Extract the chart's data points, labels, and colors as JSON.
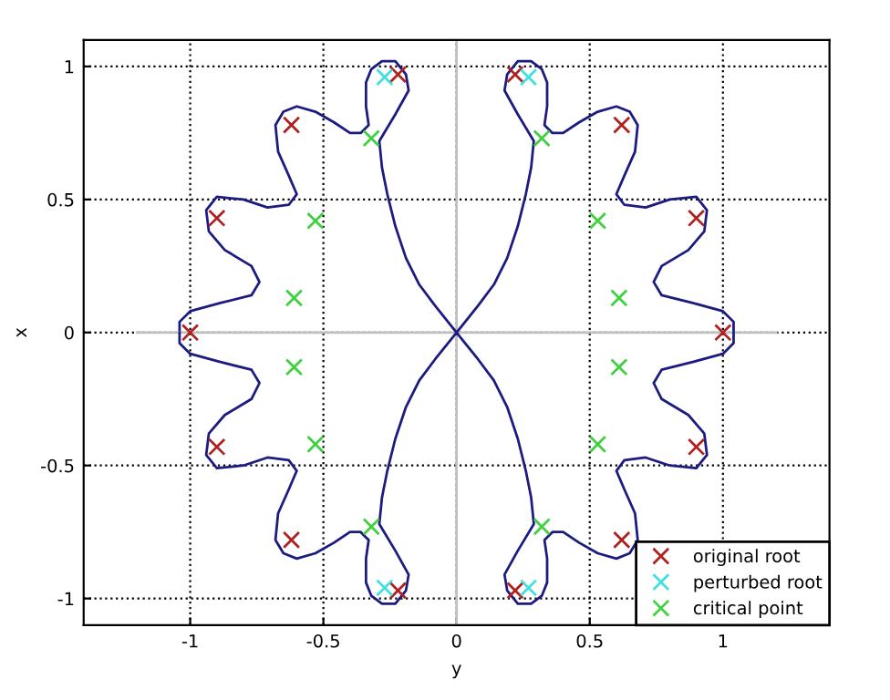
{
  "chart_data": {
    "type": "line",
    "xlabel": "y",
    "ylabel": "x",
    "xlim": [
      -1.4,
      1.4
    ],
    "ylim": [
      -1.1,
      1.1
    ],
    "xticks": [
      -1,
      -0.5,
      0,
      0.5,
      1
    ],
    "yticks": [
      -1,
      -0.5,
      0,
      0.5,
      1
    ],
    "grid": true,
    "legend": "bottom right",
    "series": [
      {
        "color": "#c0c0c0",
        "marker": "none",
        "line_style": "solid",
        "x": [
          -1.2,
          1.2
        ],
        "values": [
          0,
          0
        ]
      },
      {
        "color": "#c0c0c0",
        "marker": "none",
        "line_style": "solid",
        "x": [
          0,
          0
        ],
        "values": [
          -1.1,
          1.1
        ]
      },
      {
        "color": "#1c1c80",
        "marker": "none",
        "line_style": "solid",
        "x": [
          -1.04,
          -1.04,
          -1.0,
          -0.89,
          -0.77,
          -0.74,
          -0.77,
          -0.87,
          -0.93,
          -0.94,
          -0.9,
          -0.8,
          -0.71,
          -0.63,
          -0.6,
          -0.63,
          -0.67,
          -0.68,
          -0.65,
          -0.6,
          -0.53,
          -0.46,
          -0.4,
          -0.36,
          -0.33,
          -0.34,
          -0.34,
          -0.32,
          -0.28,
          -0.23,
          -0.19,
          -0.18,
          -0.23,
          -0.29,
          -0.28,
          -0.26,
          -0.23,
          -0.19,
          -0.14,
          -0.08,
          0,
          0.08,
          0.14,
          0.19,
          0.23,
          0.26,
          0.28,
          0.29,
          0.23,
          0.18,
          0.19,
          0.23,
          0.28,
          0.32,
          0.34,
          0.34,
          0.33,
          0.36,
          0.4,
          0.46,
          0.53,
          0.6,
          0.65,
          0.68,
          0.67,
          0.63,
          0.6,
          0.63,
          0.71,
          0.8,
          0.9,
          0.94,
          0.93,
          0.87,
          0.77,
          0.74,
          0.77,
          0.89,
          1.0,
          1.04,
          1.04,
          1.04,
          1.0,
          0.89,
          0.77,
          0.74,
          0.77,
          0.87,
          0.93,
          0.94,
          0.9,
          0.8,
          0.71,
          0.63,
          0.6,
          0.63,
          0.67,
          0.68,
          0.65,
          0.6,
          0.53,
          0.46,
          0.4,
          0.36,
          0.33,
          0.34,
          0.34,
          0.32,
          0.28,
          0.23,
          0.19,
          0.18,
          0.23,
          0.29,
          0.28,
          0.26,
          0.23,
          0.19,
          0.14,
          0.08,
          0,
          -0.08,
          -0.14,
          -0.19,
          -0.23,
          -0.26,
          -0.28,
          -0.29,
          -0.23,
          -0.18,
          -0.19,
          -0.23,
          -0.28,
          -0.32,
          -0.34,
          -0.34,
          -0.33,
          -0.36,
          -0.4,
          -0.46,
          -0.53,
          -0.6,
          -0.65,
          -0.68,
          -0.67,
          -0.63,
          -0.6,
          -0.63,
          -0.71,
          -0.8,
          -0.9,
          -0.94,
          -0.93,
          -0.87,
          -0.77,
          -0.74,
          -0.77,
          -0.89,
          -1.0,
          -1.04,
          -1.04
        ],
        "values": [
          0,
          -0.04,
          -0.08,
          -0.11,
          -0.14,
          -0.19,
          -0.25,
          -0.31,
          -0.38,
          -0.46,
          -0.51,
          -0.5,
          -0.47,
          -0.48,
          -0.52,
          -0.59,
          -0.68,
          -0.78,
          -0.83,
          -0.85,
          -0.83,
          -0.79,
          -0.75,
          -0.75,
          -0.78,
          -0.85,
          -0.94,
          -0.99,
          -1.02,
          -1.02,
          -0.97,
          -0.91,
          -0.82,
          -0.72,
          -0.62,
          -0.52,
          -0.4,
          -0.28,
          -0.18,
          -0.1,
          0,
          0.1,
          0.18,
          0.28,
          0.4,
          0.52,
          0.62,
          0.72,
          0.82,
          0.91,
          0.97,
          1.02,
          1.02,
          0.99,
          0.94,
          0.85,
          0.78,
          0.75,
          0.75,
          0.79,
          0.83,
          0.85,
          0.83,
          0.78,
          0.68,
          0.59,
          0.52,
          0.48,
          0.47,
          0.5,
          0.51,
          0.46,
          0.38,
          0.31,
          0.25,
          0.19,
          0.14,
          0.11,
          0.08,
          0.04,
          0,
          -0.04,
          -0.08,
          -0.11,
          -0.14,
          -0.19,
          -0.25,
          -0.31,
          -0.38,
          -0.46,
          -0.51,
          -0.5,
          -0.47,
          -0.48,
          -0.52,
          -0.59,
          -0.68,
          -0.78,
          -0.83,
          -0.85,
          -0.83,
          -0.79,
          -0.75,
          -0.75,
          -0.78,
          -0.85,
          -0.94,
          -0.99,
          -1.02,
          -1.02,
          -0.97,
          -0.91,
          -0.82,
          -0.72,
          -0.62,
          -0.52,
          -0.4,
          -0.28,
          -0.18,
          -0.1,
          0,
          0.1,
          0.18,
          0.28,
          0.4,
          0.52,
          0.62,
          0.72,
          0.82,
          0.91,
          0.97,
          1.02,
          1.02,
          0.99,
          0.94,
          0.85,
          0.78,
          0.75,
          0.75,
          0.79,
          0.83,
          0.85,
          0.83,
          0.78,
          0.68,
          0.59,
          0.52,
          0.48,
          0.47,
          0.5,
          0.51,
          0.46,
          0.38,
          0.31,
          0.25,
          0.19,
          0.14,
          0.11,
          0.08,
          0.04,
          0.01
        ]
      },
      {
        "type": "scatter",
        "name": "original root",
        "color": "#b02020",
        "marker": "cross",
        "x": [
          1,
          0.9,
          0.62,
          0.22,
          -0.22,
          -0.62,
          -0.9,
          -1,
          -0.9,
          -0.62,
          -0.22,
          0.22,
          0.62,
          0.9
        ],
        "values": [
          0,
          0.43,
          0.78,
          0.97,
          0.97,
          0.78,
          0.43,
          0,
          -0.43,
          -0.78,
          -0.97,
          -0.97,
          -0.78,
          -0.43
        ]
      },
      {
        "type": "scatter",
        "name": "perturbed root",
        "color": "#40e0e0",
        "marker": "cross",
        "x": [
          0.27,
          -0.27,
          -0.27,
          0.27
        ],
        "values": [
          0.96,
          0.96,
          -0.96,
          -0.96
        ]
      },
      {
        "type": "scatter",
        "name": "critical point",
        "color": "#40d040",
        "marker": "cross",
        "x": [
          0.32,
          0.53,
          0.61,
          0.61,
          0.53,
          0.32,
          -0.32,
          -0.53,
          -0.61,
          -0.61,
          -0.53,
          -0.32
        ],
        "values": [
          0.73,
          0.42,
          0.13,
          -0.13,
          -0.42,
          -0.73,
          0.73,
          0.42,
          0.13,
          -0.13,
          -0.42,
          -0.73
        ]
      }
    ]
  }
}
